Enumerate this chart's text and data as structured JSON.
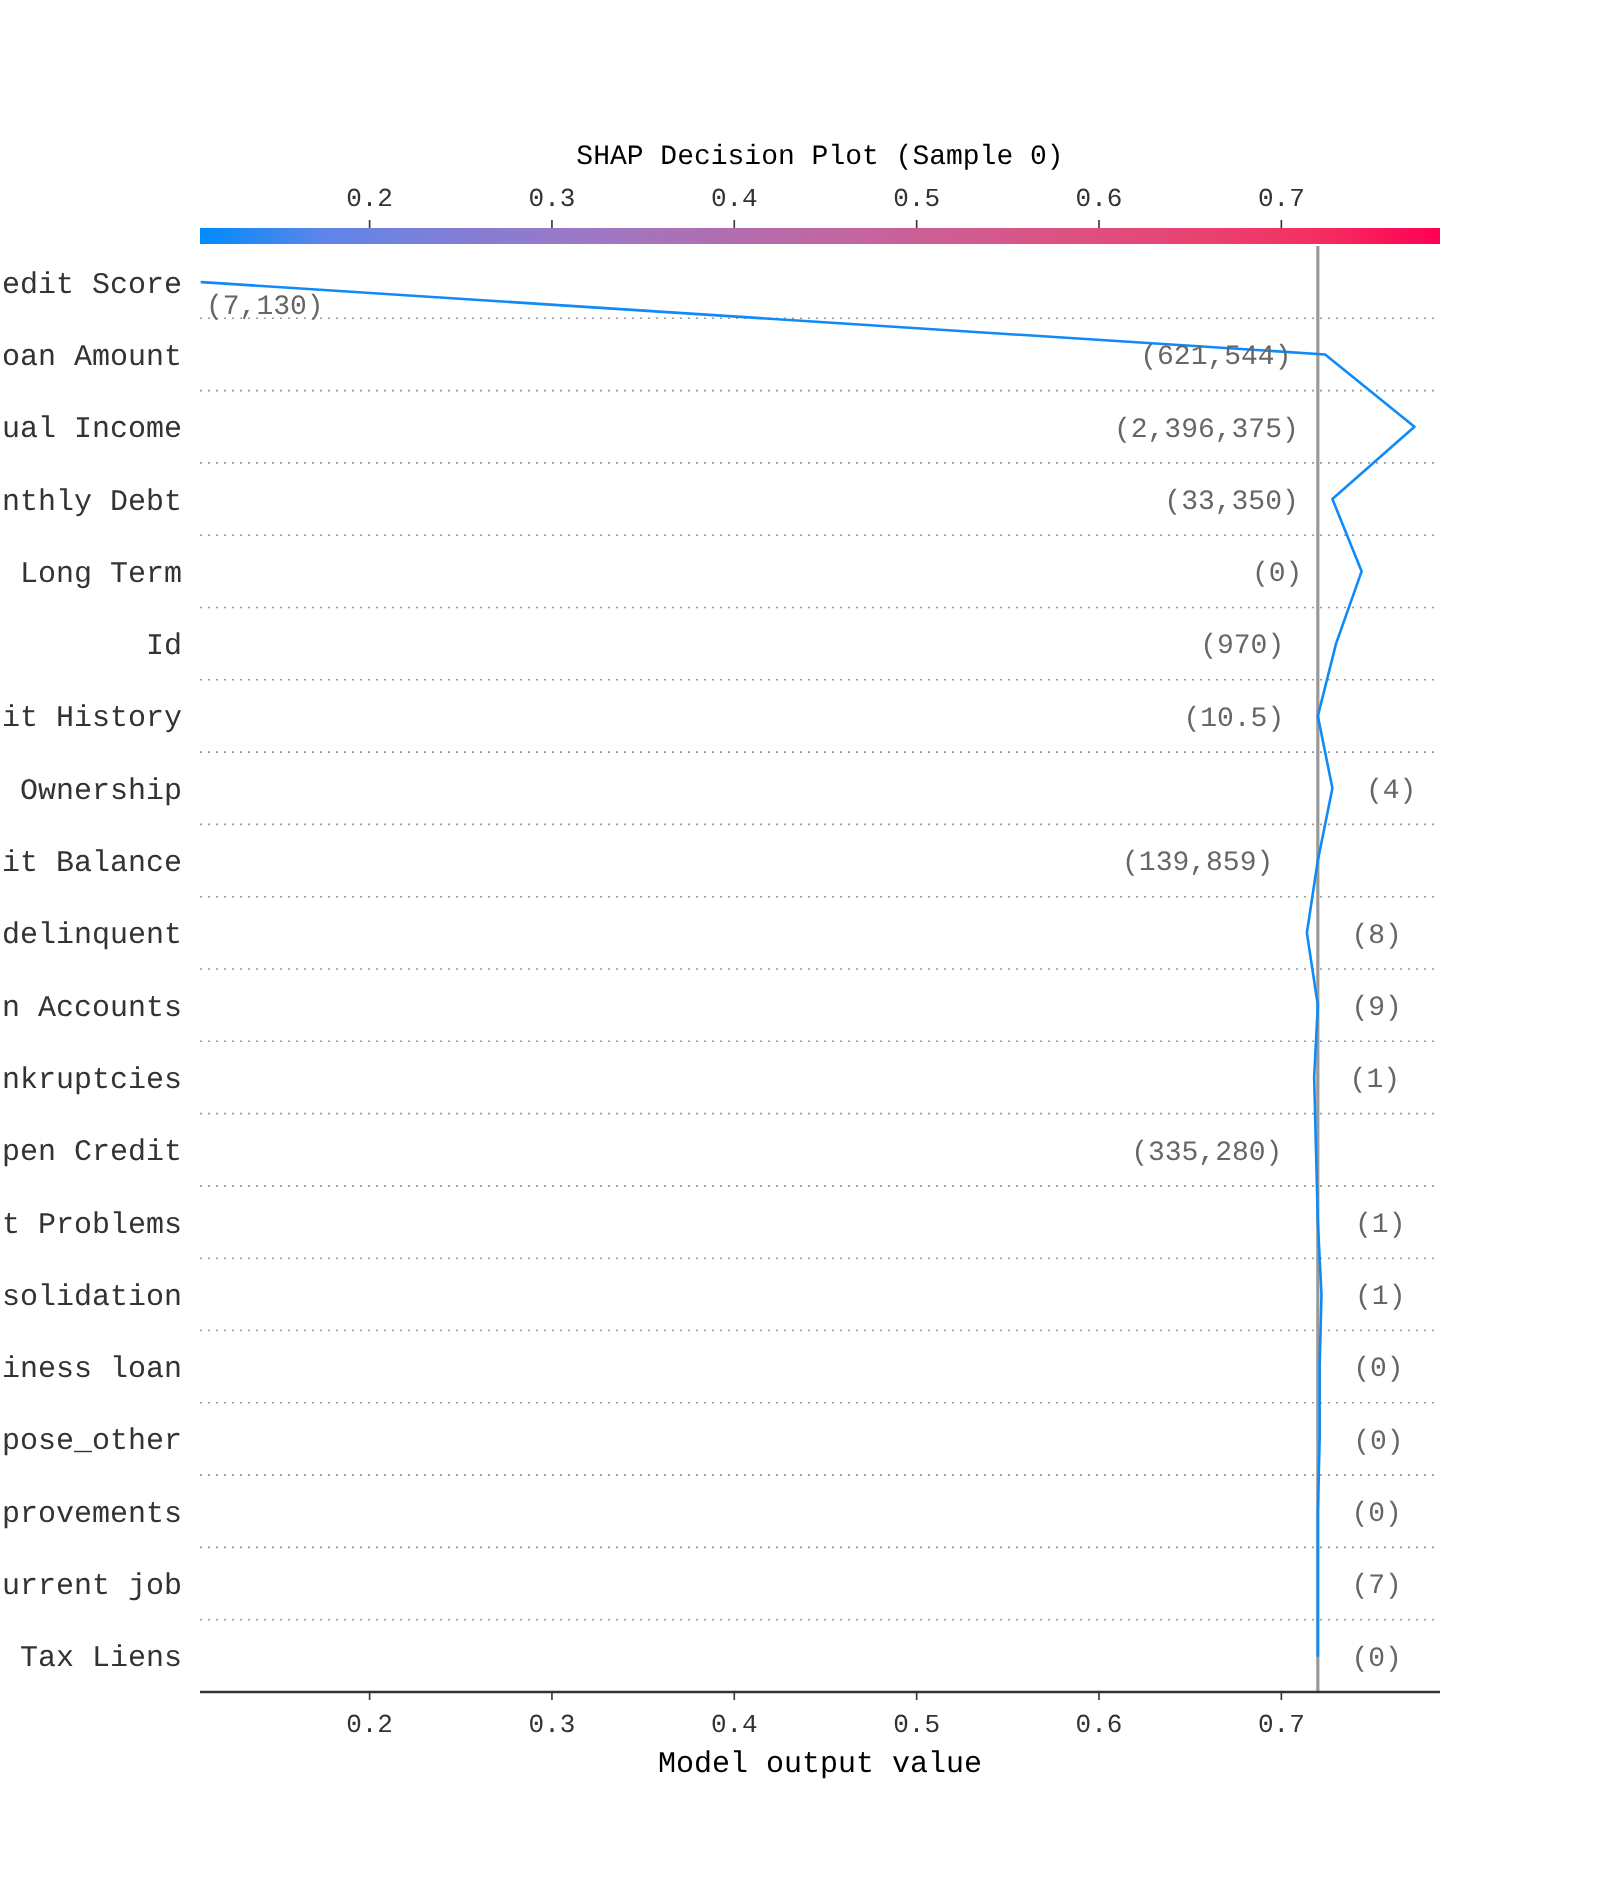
{
  "chart_data": {
    "type": "line",
    "orientation": "horizontal",
    "title": "SHAP Decision Plot (Sample 0)",
    "xlabel": "Model output value",
    "categories": [
      "edit Score",
      "oan Amount",
      "ual Income",
      "nthly Debt",
      "Long Term",
      "Id",
      "it History",
      "Ownership",
      "it Balance",
      "delinquent",
      "n Accounts",
      "nkruptcies",
      "pen Credit",
      "t Problems",
      "solidation",
      "iness loan",
      "pose_other",
      "provements",
      "urrent job",
      "Tax Liens"
    ],
    "series": [
      {
        "color": "#0f8af8",
        "values": [
          0.108,
          0.724,
          0.773,
          0.728,
          0.744,
          0.73,
          0.72,
          0.728,
          0.72,
          0.714,
          0.72,
          0.718,
          0.719,
          0.72,
          0.722,
          0.721,
          0.721,
          0.72,
          0.72,
          0.72
        ]
      }
    ],
    "xlim": [
      0.107,
      0.787
    ],
    "xticks": [
      0.2,
      0.3,
      0.4,
      0.5,
      0.6,
      0.7
    ],
    "clim": [
      0.107,
      0.787
    ],
    "cticks": [
      0.2,
      0.3,
      0.4,
      0.5,
      0.6,
      0.7
    ],
    "ref_lines": [
      {
        "axis": "x",
        "value": 0.72,
        "color": "#999999"
      }
    ],
    "annotations": [
      "(7,130)",
      "(621,544)",
      "(2,396,375)",
      "(33,350)",
      "(0)",
      "(970)",
      "(10.5)",
      "(4)",
      "(139,859)",
      "(8)",
      "(9)",
      "(1)",
      "(335,280)",
      "(1)",
      "(1)",
      "(0)",
      "(0)",
      "(0)",
      "(7)",
      "(0)"
    ],
    "grid": "y"
  }
}
